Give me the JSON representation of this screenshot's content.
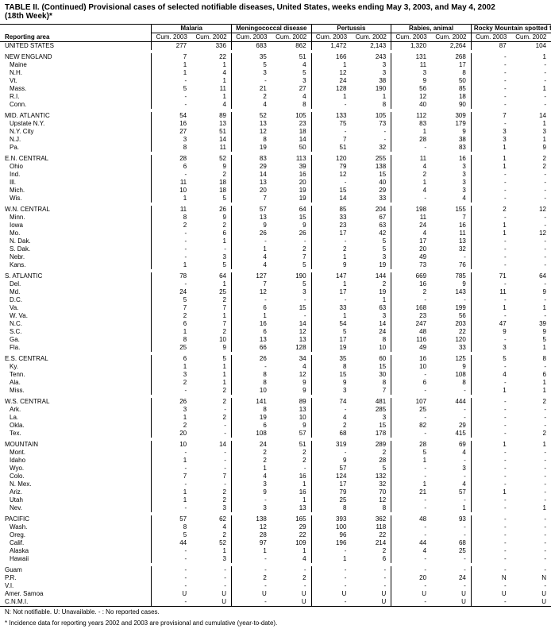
{
  "title_line1": "TABLE II. (Continued) Provisional cases of selected notifiable diseases, United States, weeks ending May 3, 2003, and May 4, 2002",
  "title_line2": "(18th Week)*",
  "header": {
    "reporting_area": "Reporting area",
    "groups": [
      "Malaria",
      "Meningococcal disease",
      "Pertussis",
      "Rabies, animal",
      "Rocky Mountain spotted fever"
    ],
    "cols": [
      "Cum. 2003",
      "Cum. 2002"
    ]
  },
  "footnote": "N: Not notifiable.        U: Unavailable.        - : No reported cases.",
  "footnote2": "* Incidence data for reporting years 2002 and 2003 are provisional and cumulative (year-to-date).",
  "rows": [
    {
      "area": "UNITED STATES",
      "cls": "us",
      "v": [
        "277",
        "336",
        "683",
        "862",
        "1,472",
        "2,143",
        "1,320",
        "2,264",
        "87",
        "104"
      ]
    },
    {
      "area": "",
      "cls": "spacer",
      "v": [
        "",
        "",
        "",
        "",
        "",
        "",
        "",
        "",
        "",
        ""
      ]
    },
    {
      "area": "NEW ENGLAND",
      "cls": "region",
      "v": [
        "7",
        "22",
        "35",
        "51",
        "166",
        "243",
        "131",
        "268",
        "-",
        "1"
      ]
    },
    {
      "area": "Maine",
      "cls": "sub",
      "v": [
        "1",
        "1",
        "5",
        "4",
        "1",
        "3",
        "11",
        "17",
        "-",
        "-"
      ]
    },
    {
      "area": "N.H.",
      "cls": "sub",
      "v": [
        "1",
        "4",
        "3",
        "5",
        "12",
        "3",
        "3",
        "8",
        "-",
        "-"
      ]
    },
    {
      "area": "Vt.",
      "cls": "sub",
      "v": [
        "-",
        "1",
        "-",
        "3",
        "24",
        "38",
        "9",
        "50",
        "-",
        "-"
      ]
    },
    {
      "area": "Mass.",
      "cls": "sub",
      "v": [
        "5",
        "11",
        "21",
        "27",
        "128",
        "190",
        "56",
        "85",
        "-",
        "1"
      ]
    },
    {
      "area": "R.I.",
      "cls": "sub",
      "v": [
        "-",
        "1",
        "2",
        "4",
        "1",
        "1",
        "12",
        "18",
        "-",
        "-"
      ]
    },
    {
      "area": "Conn.",
      "cls": "sub",
      "v": [
        "-",
        "4",
        "4",
        "8",
        "-",
        "8",
        "40",
        "90",
        "-",
        "-"
      ]
    },
    {
      "area": "",
      "cls": "spacer",
      "v": [
        "",
        "",
        "",
        "",
        "",
        "",
        "",
        "",
        "",
        ""
      ]
    },
    {
      "area": "MID. ATLANTIC",
      "cls": "region",
      "v": [
        "54",
        "89",
        "52",
        "105",
        "133",
        "105",
        "112",
        "309",
        "7",
        "14"
      ]
    },
    {
      "area": "Upstate N.Y.",
      "cls": "sub",
      "v": [
        "16",
        "13",
        "13",
        "23",
        "75",
        "73",
        "83",
        "179",
        "-",
        "1"
      ]
    },
    {
      "area": "N.Y. City",
      "cls": "sub",
      "v": [
        "27",
        "51",
        "12",
        "18",
        "-",
        "-",
        "1",
        "9",
        "3",
        "3"
      ]
    },
    {
      "area": "N.J.",
      "cls": "sub",
      "v": [
        "3",
        "14",
        "8",
        "14",
        "7",
        "-",
        "28",
        "38",
        "3",
        "1"
      ]
    },
    {
      "area": "Pa.",
      "cls": "sub",
      "v": [
        "8",
        "11",
        "19",
        "50",
        "51",
        "32",
        "-",
        "83",
        "1",
        "9"
      ]
    },
    {
      "area": "",
      "cls": "spacer",
      "v": [
        "",
        "",
        "",
        "",
        "",
        "",
        "",
        "",
        "",
        ""
      ]
    },
    {
      "area": "E.N. CENTRAL",
      "cls": "region",
      "v": [
        "28",
        "52",
        "83",
        "113",
        "120",
        "255",
        "11",
        "16",
        "1",
        "2"
      ]
    },
    {
      "area": "Ohio",
      "cls": "sub",
      "v": [
        "6",
        "9",
        "29",
        "39",
        "79",
        "138",
        "4",
        "3",
        "1",
        "2"
      ]
    },
    {
      "area": "Ind.",
      "cls": "sub",
      "v": [
        "-",
        "2",
        "14",
        "16",
        "12",
        "15",
        "2",
        "3",
        "-",
        "-"
      ]
    },
    {
      "area": "Ill.",
      "cls": "sub",
      "v": [
        "11",
        "18",
        "13",
        "20",
        "-",
        "40",
        "1",
        "3",
        "-",
        "-"
      ]
    },
    {
      "area": "Mich.",
      "cls": "sub",
      "v": [
        "10",
        "18",
        "20",
        "19",
        "15",
        "29",
        "4",
        "3",
        "-",
        "-"
      ]
    },
    {
      "area": "Wis.",
      "cls": "sub",
      "v": [
        "1",
        "5",
        "7",
        "19",
        "14",
        "33",
        "-",
        "4",
        "-",
        "-"
      ]
    },
    {
      "area": "",
      "cls": "spacer",
      "v": [
        "",
        "",
        "",
        "",
        "",
        "",
        "",
        "",
        "",
        ""
      ]
    },
    {
      "area": "W.N. CENTRAL",
      "cls": "region",
      "v": [
        "11",
        "26",
        "57",
        "64",
        "85",
        "204",
        "198",
        "155",
        "2",
        "12"
      ]
    },
    {
      "area": "Minn.",
      "cls": "sub",
      "v": [
        "8",
        "9",
        "13",
        "15",
        "33",
        "67",
        "11",
        "7",
        "-",
        "-"
      ]
    },
    {
      "area": "Iowa",
      "cls": "sub",
      "v": [
        "2",
        "2",
        "9",
        "9",
        "23",
        "63",
        "24",
        "16",
        "1",
        "-"
      ]
    },
    {
      "area": "Mo.",
      "cls": "sub",
      "v": [
        "-",
        "6",
        "26",
        "26",
        "17",
        "42",
        "4",
        "11",
        "1",
        "12"
      ]
    },
    {
      "area": "N. Dak.",
      "cls": "sub",
      "v": [
        "-",
        "1",
        "-",
        "-",
        "-",
        "5",
        "17",
        "13",
        "-",
        "-"
      ]
    },
    {
      "area": "S. Dak.",
      "cls": "sub",
      "v": [
        "-",
        "-",
        "1",
        "2",
        "2",
        "5",
        "20",
        "32",
        "-",
        "-"
      ]
    },
    {
      "area": "Nebr.",
      "cls": "sub",
      "v": [
        "-",
        "3",
        "4",
        "7",
        "1",
        "3",
        "49",
        "-",
        "-",
        "-"
      ]
    },
    {
      "area": "Kans.",
      "cls": "sub",
      "v": [
        "1",
        "5",
        "4",
        "5",
        "9",
        "19",
        "73",
        "76",
        "-",
        "-"
      ]
    },
    {
      "area": "",
      "cls": "spacer",
      "v": [
        "",
        "",
        "",
        "",
        "",
        "",
        "",
        "",
        "",
        ""
      ]
    },
    {
      "area": "S. ATLANTIC",
      "cls": "region",
      "v": [
        "78",
        "64",
        "127",
        "190",
        "147",
        "144",
        "669",
        "785",
        "71",
        "64"
      ]
    },
    {
      "area": "Del.",
      "cls": "sub",
      "v": [
        "-",
        "1",
        "7",
        "5",
        "1",
        "2",
        "16",
        "9",
        "-",
        "-"
      ]
    },
    {
      "area": "Md.",
      "cls": "sub",
      "v": [
        "24",
        "25",
        "12",
        "3",
        "17",
        "19",
        "2",
        "143",
        "11",
        "9"
      ]
    },
    {
      "area": "D.C.",
      "cls": "sub",
      "v": [
        "5",
        "2",
        "-",
        "-",
        "-",
        "1",
        "-",
        "-",
        "-",
        "-"
      ]
    },
    {
      "area": "Va.",
      "cls": "sub",
      "v": [
        "7",
        "7",
        "6",
        "15",
        "33",
        "63",
        "168",
        "199",
        "1",
        "1"
      ]
    },
    {
      "area": "W. Va.",
      "cls": "sub",
      "v": [
        "2",
        "1",
        "1",
        "-",
        "1",
        "3",
        "23",
        "56",
        "-",
        "-"
      ]
    },
    {
      "area": "N.C.",
      "cls": "sub",
      "v": [
        "6",
        "7",
        "16",
        "14",
        "54",
        "14",
        "247",
        "203",
        "47",
        "39"
      ]
    },
    {
      "area": "S.C.",
      "cls": "sub",
      "v": [
        "1",
        "2",
        "6",
        "12",
        "5",
        "24",
        "48",
        "22",
        "9",
        "9"
      ]
    },
    {
      "area": "Ga.",
      "cls": "sub",
      "v": [
        "8",
        "10",
        "13",
        "13",
        "17",
        "8",
        "116",
        "120",
        "-",
        "5"
      ]
    },
    {
      "area": "Fla.",
      "cls": "sub",
      "v": [
        "25",
        "9",
        "66",
        "128",
        "19",
        "10",
        "49",
        "33",
        "3",
        "1"
      ]
    },
    {
      "area": "",
      "cls": "spacer",
      "v": [
        "",
        "",
        "",
        "",
        "",
        "",
        "",
        "",
        "",
        ""
      ]
    },
    {
      "area": "E.S. CENTRAL",
      "cls": "region",
      "v": [
        "6",
        "5",
        "26",
        "34",
        "35",
        "60",
        "16",
        "125",
        "5",
        "8"
      ]
    },
    {
      "area": "Ky.",
      "cls": "sub",
      "v": [
        "1",
        "1",
        "-",
        "4",
        "8",
        "15",
        "10",
        "9",
        "-",
        "-"
      ]
    },
    {
      "area": "Tenn.",
      "cls": "sub",
      "v": [
        "3",
        "1",
        "8",
        "12",
        "15",
        "30",
        "-",
        "108",
        "4",
        "6"
      ]
    },
    {
      "area": "Ala.",
      "cls": "sub",
      "v": [
        "2",
        "1",
        "8",
        "9",
        "9",
        "8",
        "6",
        "8",
        "-",
        "1"
      ]
    },
    {
      "area": "Miss.",
      "cls": "sub",
      "v": [
        "-",
        "2",
        "10",
        "9",
        "3",
        "7",
        "-",
        "-",
        "1",
        "1"
      ]
    },
    {
      "area": "",
      "cls": "spacer",
      "v": [
        "",
        "",
        "",
        "",
        "",
        "",
        "",
        "",
        "",
        ""
      ]
    },
    {
      "area": "W.S. CENTRAL",
      "cls": "region",
      "v": [
        "26",
        "2",
        "141",
        "89",
        "74",
        "481",
        "107",
        "444",
        "-",
        "2"
      ]
    },
    {
      "area": "Ark.",
      "cls": "sub",
      "v": [
        "3",
        "-",
        "8",
        "13",
        "-",
        "285",
        "25",
        "-",
        "-",
        "-"
      ]
    },
    {
      "area": "La.",
      "cls": "sub",
      "v": [
        "1",
        "2",
        "19",
        "10",
        "4",
        "3",
        "-",
        "-",
        "-",
        "-"
      ]
    },
    {
      "area": "Okla.",
      "cls": "sub",
      "v": [
        "2",
        "-",
        "6",
        "9",
        "2",
        "15",
        "82",
        "29",
        "-",
        "-"
      ]
    },
    {
      "area": "Tex.",
      "cls": "sub",
      "v": [
        "20",
        "-",
        "108",
        "57",
        "68",
        "178",
        "-",
        "415",
        "-",
        "2"
      ]
    },
    {
      "area": "",
      "cls": "spacer",
      "v": [
        "",
        "",
        "",
        "",
        "",
        "",
        "",
        "",
        "",
        ""
      ]
    },
    {
      "area": "MOUNTAIN",
      "cls": "region",
      "v": [
        "10",
        "14",
        "24",
        "51",
        "319",
        "289",
        "28",
        "69",
        "1",
        "1"
      ]
    },
    {
      "area": "Mont.",
      "cls": "sub",
      "v": [
        "-",
        "-",
        "2",
        "2",
        "-",
        "2",
        "5",
        "4",
        "-",
        "-"
      ]
    },
    {
      "area": "Idaho",
      "cls": "sub",
      "v": [
        "1",
        "-",
        "2",
        "2",
        "9",
        "28",
        "1",
        "-",
        "-",
        "-"
      ]
    },
    {
      "area": "Wyo.",
      "cls": "sub",
      "v": [
        "-",
        "-",
        "1",
        "-",
        "57",
        "5",
        "-",
        "3",
        "-",
        "-"
      ]
    },
    {
      "area": "Colo.",
      "cls": "sub",
      "v": [
        "7",
        "7",
        "4",
        "16",
        "124",
        "132",
        "-",
        "-",
        "-",
        "-"
      ]
    },
    {
      "area": "N. Mex.",
      "cls": "sub",
      "v": [
        "-",
        "-",
        "3",
        "1",
        "17",
        "32",
        "1",
        "4",
        "-",
        "-"
      ]
    },
    {
      "area": "Ariz.",
      "cls": "sub",
      "v": [
        "1",
        "2",
        "9",
        "16",
        "79",
        "70",
        "21",
        "57",
        "1",
        "-"
      ]
    },
    {
      "area": "Utah",
      "cls": "sub",
      "v": [
        "1",
        "2",
        "-",
        "1",
        "25",
        "12",
        "-",
        "-",
        "-",
        "-"
      ]
    },
    {
      "area": "Nev.",
      "cls": "sub",
      "v": [
        "-",
        "3",
        "3",
        "13",
        "8",
        "8",
        "-",
        "1",
        "-",
        "1"
      ]
    },
    {
      "area": "",
      "cls": "spacer",
      "v": [
        "",
        "",
        "",
        "",
        "",
        "",
        "",
        "",
        "",
        ""
      ]
    },
    {
      "area": "PACIFIC",
      "cls": "region",
      "v": [
        "57",
        "62",
        "138",
        "165",
        "393",
        "362",
        "48",
        "93",
        "-",
        "-"
      ]
    },
    {
      "area": "Wash.",
      "cls": "sub",
      "v": [
        "8",
        "4",
        "12",
        "29",
        "100",
        "118",
        "-",
        "-",
        "-",
        "-"
      ]
    },
    {
      "area": "Oreg.",
      "cls": "sub",
      "v": [
        "5",
        "2",
        "28",
        "22",
        "96",
        "22",
        "-",
        "-",
        "-",
        "-"
      ]
    },
    {
      "area": "Calif.",
      "cls": "sub",
      "v": [
        "44",
        "52",
        "97",
        "109",
        "196",
        "214",
        "44",
        "68",
        "-",
        "-"
      ]
    },
    {
      "area": "Alaska",
      "cls": "sub",
      "v": [
        "-",
        "1",
        "1",
        "1",
        "-",
        "2",
        "4",
        "25",
        "-",
        "-"
      ]
    },
    {
      "area": "Hawaii",
      "cls": "sub",
      "v": [
        "-",
        "3",
        "-",
        "4",
        "1",
        "6",
        "-",
        "-",
        "-",
        "-"
      ]
    },
    {
      "area": "",
      "cls": "spacer",
      "v": [
        "",
        "",
        "",
        "",
        "",
        "",
        "",
        "",
        "",
        ""
      ]
    },
    {
      "area": "Guam",
      "cls": "region",
      "v": [
        "-",
        "-",
        "-",
        "-",
        "-",
        "-",
        "-",
        "-",
        "-",
        "-"
      ]
    },
    {
      "area": "P.R.",
      "cls": "region",
      "v": [
        "-",
        "-",
        "2",
        "2",
        "-",
        "-",
        "20",
        "24",
        "N",
        "N"
      ]
    },
    {
      "area": "V.I.",
      "cls": "region",
      "v": [
        "-",
        "-",
        "-",
        "-",
        "-",
        "-",
        "-",
        "-",
        "-",
        "-"
      ]
    },
    {
      "area": "Amer. Samoa",
      "cls": "region",
      "v": [
        "U",
        "U",
        "U",
        "U",
        "U",
        "U",
        "U",
        "U",
        "U",
        "U"
      ]
    },
    {
      "area": "C.N.M.I.",
      "cls": "region",
      "v": [
        "-",
        "U",
        "-",
        "U",
        "-",
        "U",
        "-",
        "U",
        "-",
        "U"
      ]
    }
  ]
}
